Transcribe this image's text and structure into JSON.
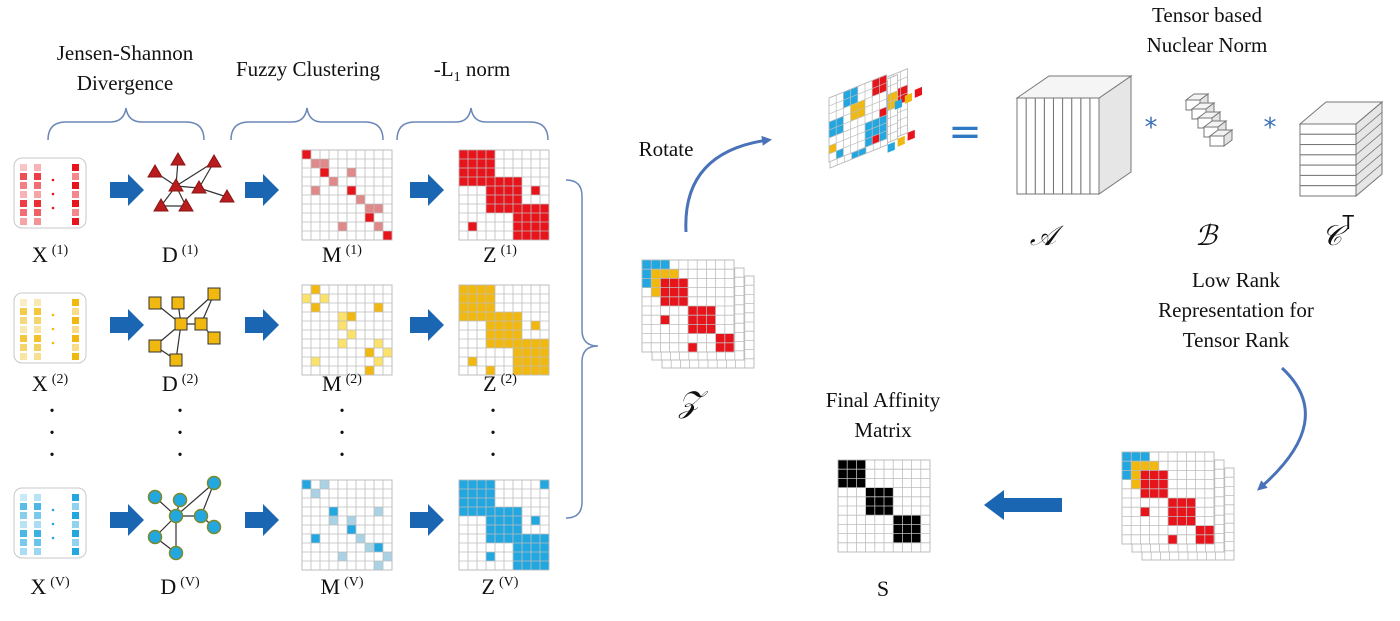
{
  "headers": {
    "jsd": "Jensen-Shannon Divergence",
    "fuzzy": "Fuzzy Clustering",
    "l1_prefix": "-L",
    "l1_sub": "1",
    "l1_suffix": " norm"
  },
  "rows": [
    {
      "x": "X",
      "x_sup": "(1)",
      "d": "D",
      "d_sup": "(1)",
      "m": "M",
      "m_sup": "(1)",
      "z": "Z",
      "z_sup": "(1)",
      "color": "#e8141b",
      "fill_color": "#e0898a",
      "shape": "triangle"
    },
    {
      "x": "X",
      "x_sup": "(2)",
      "d": "D",
      "d_sup": "(2)",
      "m": "M",
      "m_sup": "(2)",
      "z": "Z",
      "z_sup": "(2)",
      "color": "#f1b90f",
      "fill_color": "#fbe26a",
      "shape": "square"
    },
    {
      "x": "X",
      "x_sup": "(V)",
      "d": "D",
      "d_sup": "(V)",
      "m": "M",
      "m_sup": "(V)",
      "z": "Z",
      "z_sup": "(V)",
      "color": "#23a7e0",
      "fill_color": "#a9d3e4",
      "shape": "circle"
    }
  ],
  "ellipsis": "·",
  "rotate_label": "Rotate",
  "tensor_z": "𝒵",
  "tensor_nuclear": "Tensor based Nuclear Norm",
  "equals": "=",
  "star": "*",
  "tensor_a": "𝒜",
  "tensor_b": "ℬ",
  "tensor_c": "𝒞",
  "tensor_c_sup": "T",
  "low_rank": "Low Rank Representation for Tensor Rank",
  "final_affinity": "Final Affinity Matrix",
  "s_label": "S",
  "colors": {
    "arrow_blue": "#1a66b3",
    "curve_blue": "#4a72b8",
    "grid_line": "#bdbdbd",
    "red": "#e8141b",
    "yellow": "#f1b90f",
    "blue": "#23a7e0",
    "black": "#000000"
  }
}
